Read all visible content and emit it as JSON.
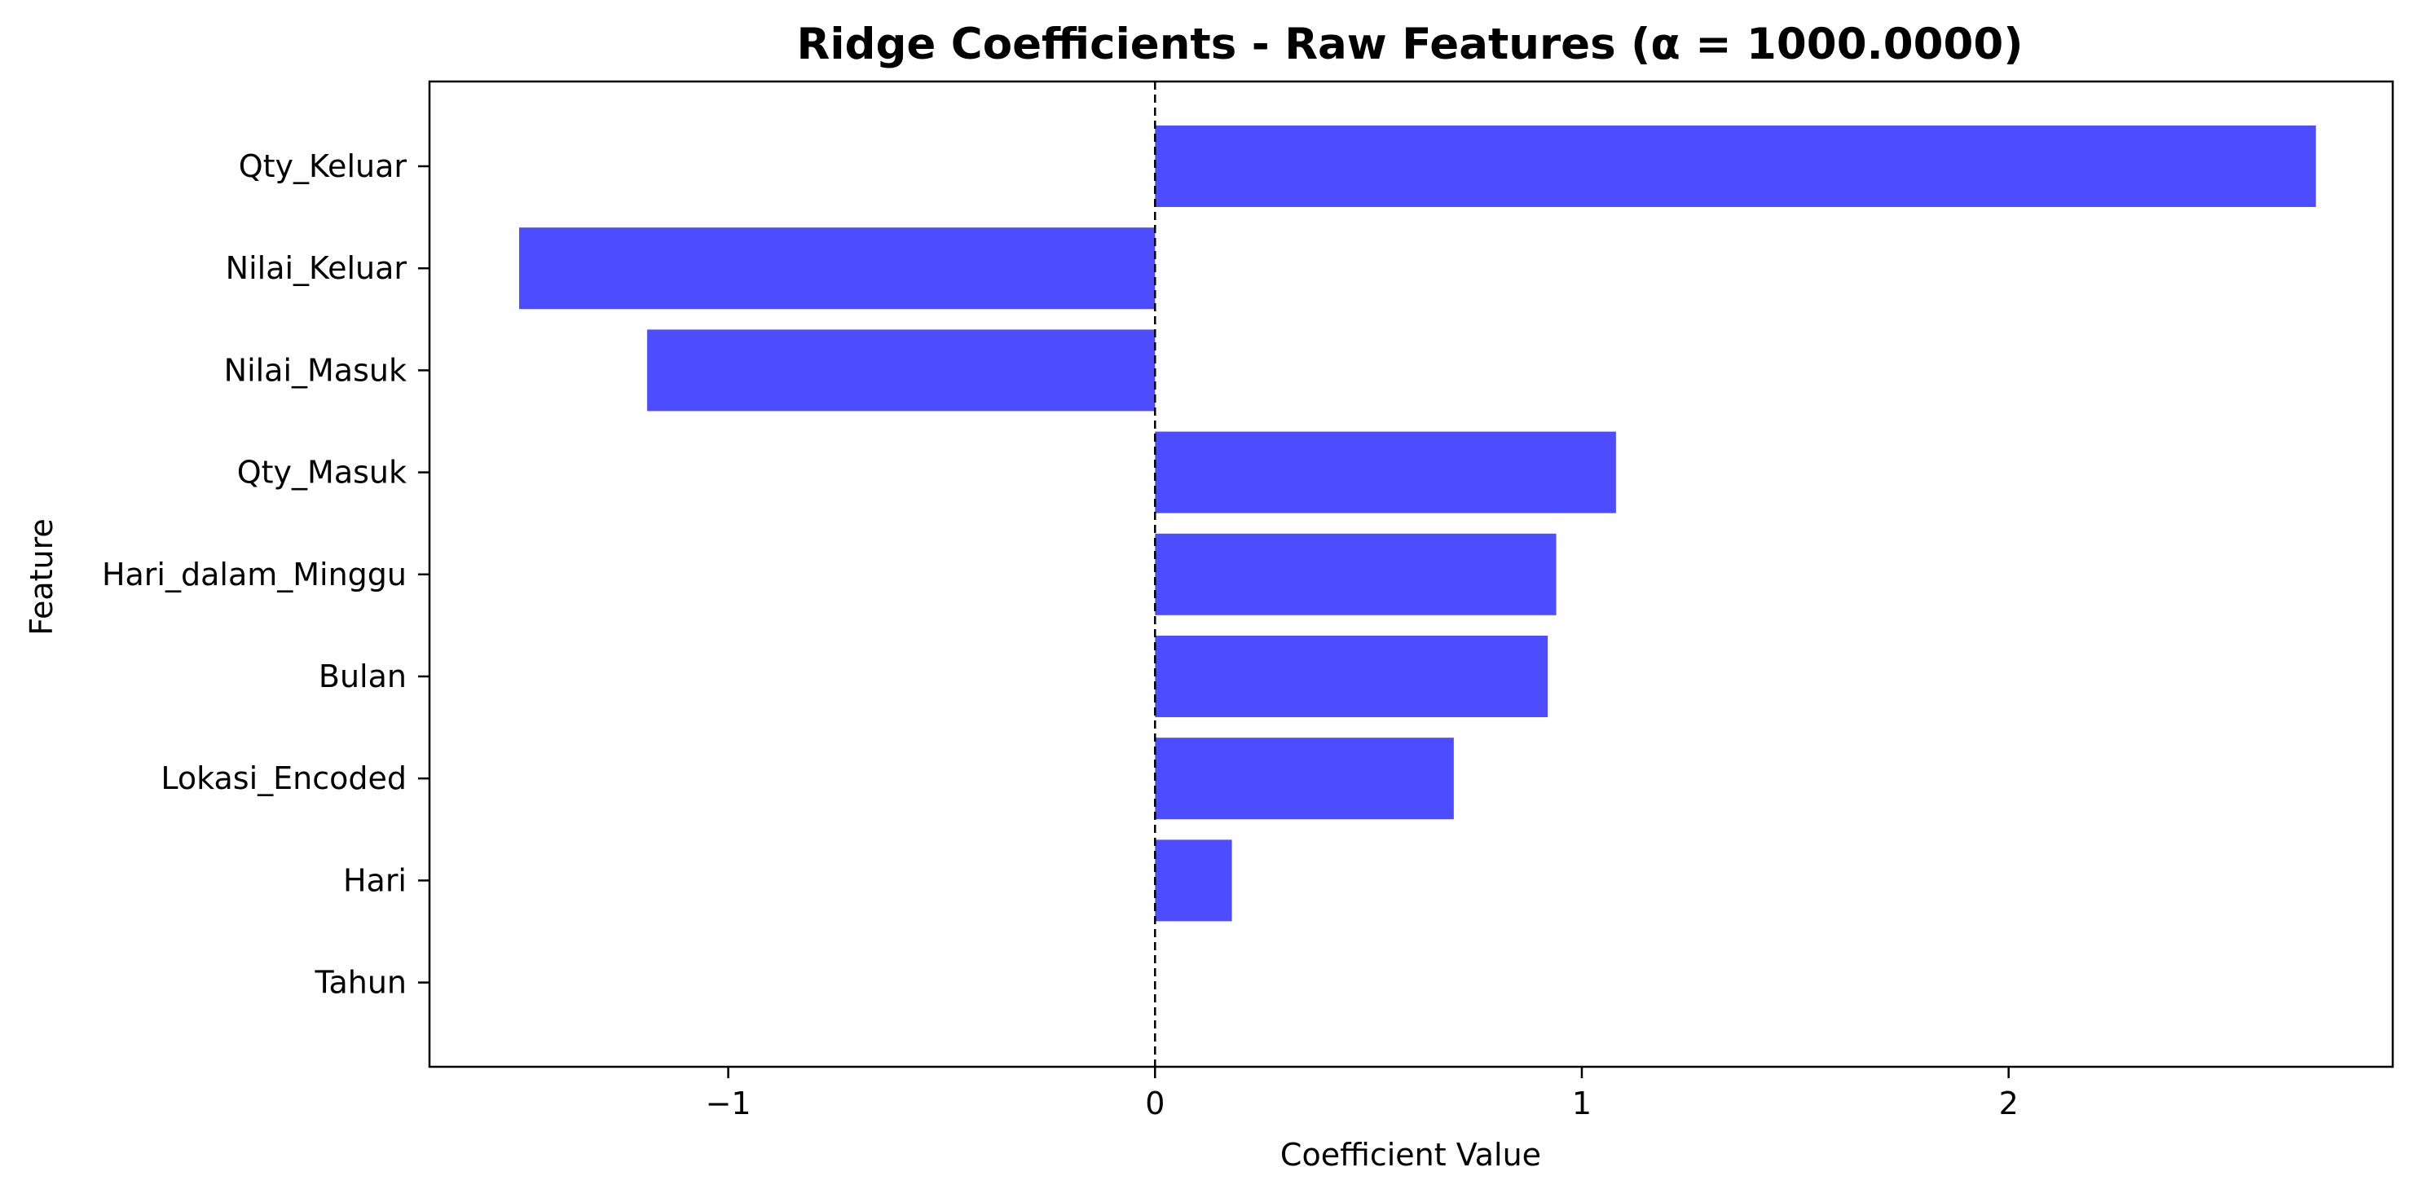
{
  "chart_data": {
    "type": "bar",
    "orientation": "horizontal",
    "title": "Ridge Coefficients - Raw Features (α = 1000.0000)",
    "xlabel": "Coefficient Value",
    "ylabel": "Feature",
    "categories": [
      "Qty_Keluar",
      "Nilai_Keluar",
      "Nilai_Masuk",
      "Qty_Masuk",
      "Hari_dalam_Minggu",
      "Bulan",
      "Lokasi_Encoded",
      "Hari",
      "Tahun"
    ],
    "values": [
      2.72,
      -1.49,
      -1.19,
      1.08,
      0.94,
      0.92,
      0.7,
      0.18,
      0.0
    ],
    "xlim": [
      -1.7,
      2.9
    ],
    "xticks": [
      -1,
      0,
      1,
      2
    ],
    "xtick_labels": [
      "−1",
      "0",
      "1",
      "2"
    ],
    "bar_color": "#4d4dff",
    "zero_line": {
      "style": "dashed",
      "color": "#000000"
    },
    "grid": false,
    "legend": false
  }
}
